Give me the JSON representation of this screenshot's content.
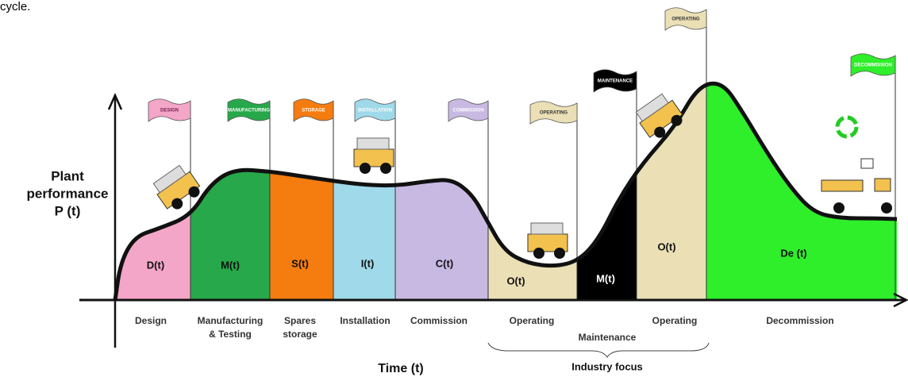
{
  "caption_fragment": "cycle.",
  "y_axis_label": [
    "Plant",
    "performance",
    "P (t)"
  ],
  "x_axis_label": "Time (t)",
  "focus_label": "Industry focus",
  "stages": [
    {
      "flag": "DESIGN",
      "region_label": "D(t)",
      "phase_label": [
        "Design"
      ]
    },
    {
      "flag": "MANUFACTURING",
      "region_label": "M(t)",
      "phase_label": [
        "Manufacturing",
        "& Testing"
      ]
    },
    {
      "flag": "STORAGE",
      "region_label": "S(t)",
      "phase_label": [
        "Spares",
        "storage"
      ]
    },
    {
      "flag": "INSTALLATION",
      "region_label": "I(t)",
      "phase_label": [
        "Installation"
      ]
    },
    {
      "flag": "COMMISSION",
      "region_label": "C(t)",
      "phase_label": [
        "Commission"
      ]
    },
    {
      "flag": "OPERATING",
      "region_label": "O(t)",
      "phase_label": [
        "Operating"
      ]
    },
    {
      "flag": "MAINTENANCE",
      "region_label": "M(t)",
      "phase_label": [
        "Maintenance"
      ]
    },
    {
      "flag": "OPERATING",
      "region_label": "O(t)",
      "phase_label": [
        "Operating"
      ]
    },
    {
      "flag": "DECOMMISSION",
      "region_label": "De (t)",
      "phase_label": [
        "Decommission"
      ]
    }
  ]
}
